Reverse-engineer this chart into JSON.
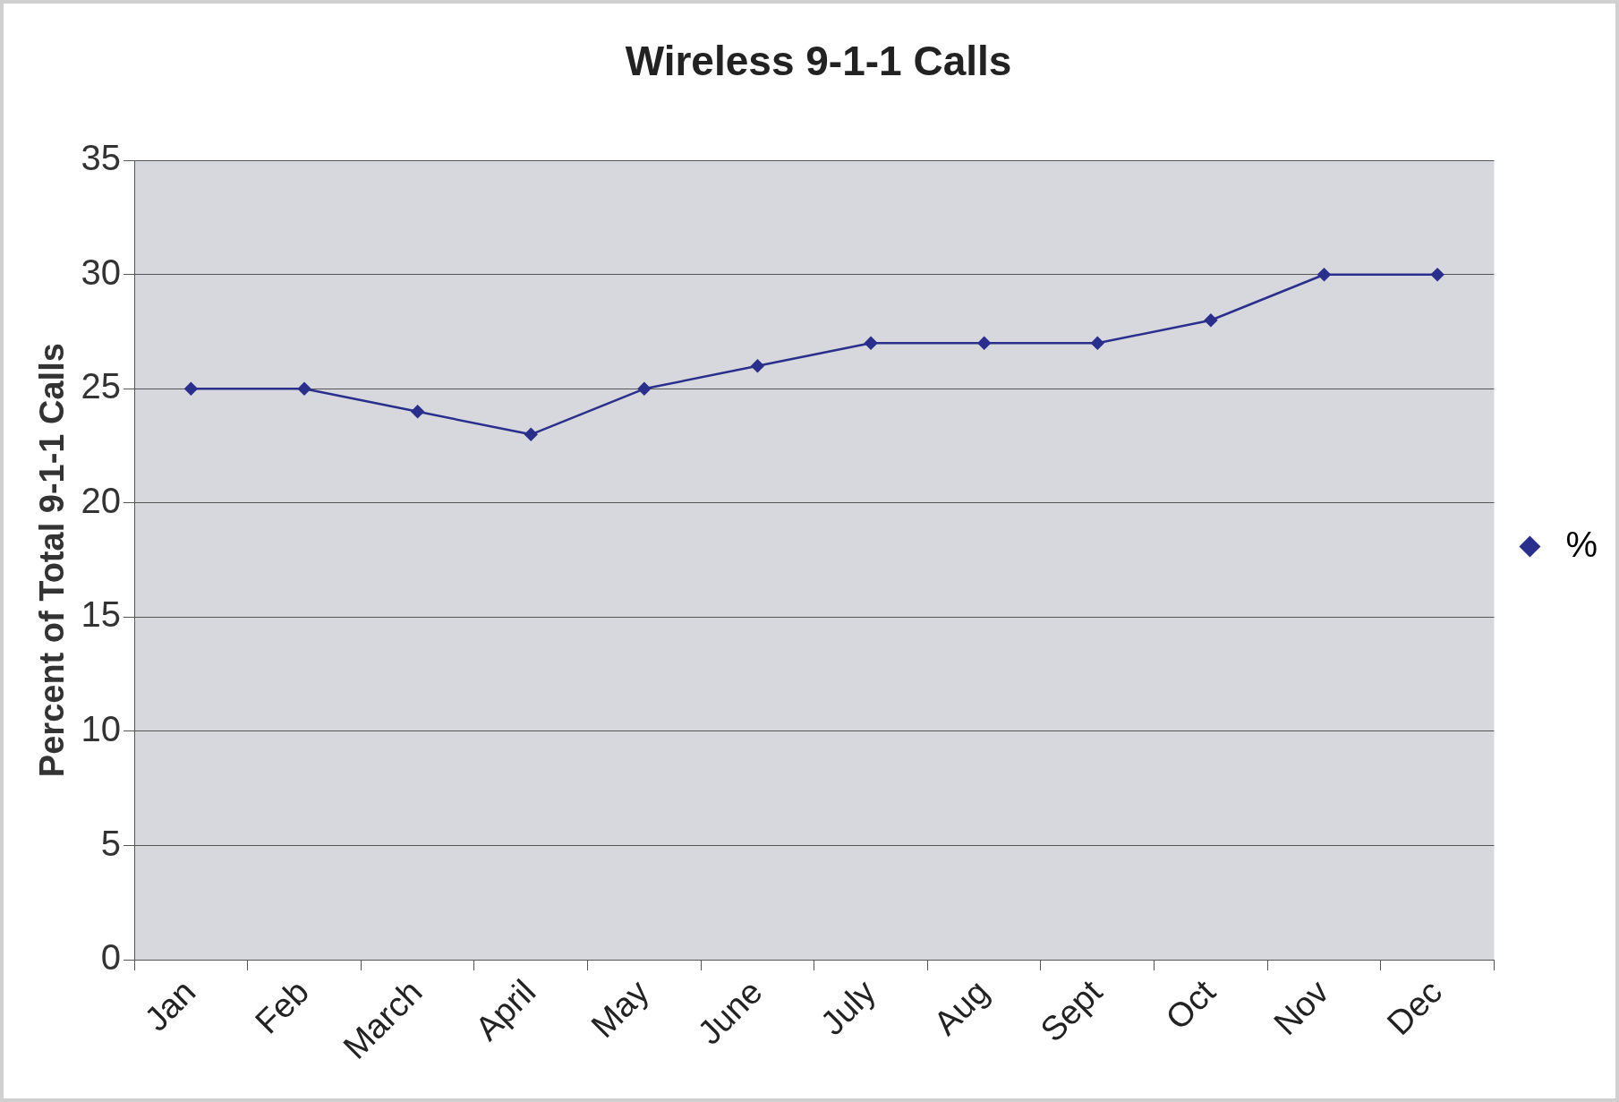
{
  "chart_data": {
    "type": "line",
    "title": "Wireless 9-1-1 Calls",
    "ylabel": "Percent of Total 9-1-1 Calls",
    "categories": [
      "Jan",
      "Feb",
      "March",
      "April",
      "May",
      "June",
      "July",
      "Aug",
      "Sept",
      "Oct",
      "Nov",
      "Dec"
    ],
    "series": [
      {
        "name": "%",
        "color": "#2b2f8c",
        "values": [
          25,
          25,
          24,
          23,
          25,
          26,
          27,
          27,
          27,
          28,
          30,
          30
        ]
      }
    ],
    "ylim": [
      0,
      35
    ],
    "yticks": [
      0,
      5,
      10,
      15,
      20,
      25,
      30,
      35
    ],
    "grid": "y",
    "legend": "right",
    "marker": "diamond",
    "line_style": "solid"
  }
}
